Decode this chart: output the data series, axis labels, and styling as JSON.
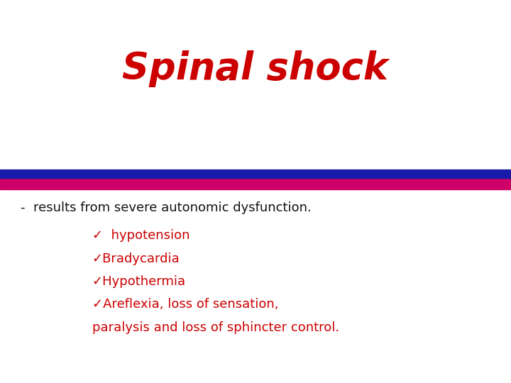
{
  "title": "Spinal shock",
  "title_color": "#cc0000",
  "title_fontsize": 38,
  "background_color": "#ffffff",
  "bar1_color": "#1a1aaa",
  "bar2_color": "#cc0066",
  "subtitle_color": "#111111",
  "subtitle_text": "-  results from severe autonomic dysfunction.",
  "subtitle_fontsize": 13,
  "bullet_color": "#cc0000",
  "bullet_check": "✓",
  "items": [
    "  hypotension",
    "Bradycardia",
    "Hypothermia",
    "Areflexia, loss of sensation,",
    "paralysis and loss of sphincter control."
  ],
  "item_fontsize": 13
}
